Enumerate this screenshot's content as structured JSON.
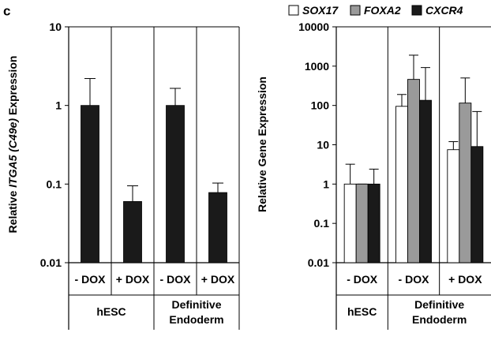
{
  "panel_label": "c",
  "chart_data": [
    {
      "type": "bar",
      "ylabel_parts": [
        "Relative ",
        "ITGA5 (C49e)",
        " Expression"
      ],
      "y_scale": "log",
      "ylim": [
        0.01,
        10
      ],
      "y_ticks": [
        "10",
        "1",
        "0.1",
        "0.01"
      ],
      "categories": [
        "- DOX",
        "+ DOX",
        "- DOX",
        "+ DOX"
      ],
      "groups": [
        {
          "label_lines": [
            "hESC"
          ]
        },
        {
          "label_lines": [
            "Definitive",
            "Endoderm"
          ]
        }
      ],
      "series": [
        {
          "color": "#1a1a1a",
          "values": [
            1.0,
            0.06,
            1.0,
            0.078
          ],
          "error_upper": [
            2.2,
            0.095,
            1.65,
            0.103
          ]
        }
      ],
      "grid": false
    },
    {
      "type": "bar",
      "ylabel": "Relative Gene Expression",
      "y_scale": "log",
      "ylim": [
        0.01,
        10000
      ],
      "y_ticks": [
        "10000",
        "1000",
        "100",
        "10",
        "1",
        "0.1",
        "0.01"
      ],
      "categories": [
        "- DOX",
        "- DOX",
        "+ DOX"
      ],
      "groups": [
        {
          "label_lines": [
            "hESC"
          ]
        },
        {
          "label_lines": [
            "Definitive",
            "Endoderm"
          ]
        }
      ],
      "legend_position": "top",
      "series": [
        {
          "name": "SOX17",
          "color": "#ffffff",
          "values": [
            1.0,
            95,
            7.5
          ],
          "error_upper": [
            3.2,
            190,
            12
          ]
        },
        {
          "name": "FOXA2",
          "color": "#9a9a9a",
          "values": [
            1.0,
            460,
            115
          ],
          "error_upper": [
            1.0,
            1900,
            500
          ]
        },
        {
          "name": "CXCR4",
          "color": "#1a1a1a",
          "values": [
            1.0,
            135,
            9
          ],
          "error_upper": [
            2.4,
            920,
            70
          ]
        }
      ],
      "grid": false
    }
  ]
}
